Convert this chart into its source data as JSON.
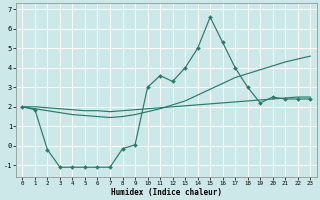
{
  "xlabel": "Humidex (Indice chaleur)",
  "bg_color": "#cce8e8",
  "grid_color": "#ffffff",
  "line_color": "#2a7a6a",
  "xlim": [
    -0.5,
    23.5
  ],
  "ylim": [
    -1.6,
    7.3
  ],
  "yticks": [
    -1,
    0,
    1,
    2,
    3,
    4,
    5,
    6,
    7
  ],
  "xticks": [
    0,
    1,
    2,
    3,
    4,
    5,
    6,
    7,
    8,
    9,
    10,
    11,
    12,
    13,
    14,
    15,
    16,
    17,
    18,
    19,
    20,
    21,
    22,
    23
  ],
  "series1_x": [
    0,
    1,
    2,
    3,
    4,
    5,
    6,
    7,
    8,
    9,
    10,
    11,
    12,
    13,
    14,
    15,
    16,
    17,
    18,
    19,
    20,
    21,
    22,
    23
  ],
  "series1_y": [
    2.0,
    2.0,
    1.95,
    1.9,
    1.85,
    1.8,
    1.8,
    1.75,
    1.8,
    1.85,
    1.9,
    1.95,
    2.0,
    2.05,
    2.1,
    2.15,
    2.2,
    2.25,
    2.3,
    2.35,
    2.4,
    2.45,
    2.5,
    2.5
  ],
  "series2_x": [
    0,
    1,
    2,
    3,
    4,
    5,
    6,
    7,
    8,
    9,
    10,
    11,
    12,
    13,
    14,
    15,
    16,
    17,
    18,
    19,
    20,
    21,
    22,
    23
  ],
  "series2_y": [
    2.0,
    1.9,
    1.8,
    1.7,
    1.6,
    1.55,
    1.5,
    1.45,
    1.5,
    1.6,
    1.75,
    1.9,
    2.1,
    2.3,
    2.6,
    2.9,
    3.2,
    3.5,
    3.7,
    3.9,
    4.1,
    4.3,
    4.45,
    4.6
  ],
  "series3_x": [
    0,
    1,
    2,
    3,
    4,
    5,
    6,
    7,
    8,
    9,
    10,
    11,
    12,
    13,
    14,
    15,
    16,
    17,
    18,
    19,
    20,
    21,
    22,
    23
  ],
  "series3_y": [
    2.0,
    1.85,
    -0.2,
    -1.1,
    -1.1,
    -1.1,
    -1.1,
    -1.1,
    -0.15,
    0.05,
    3.0,
    3.6,
    3.3,
    4.0,
    5.0,
    6.6,
    5.3,
    4.0,
    3.0,
    2.2,
    2.5,
    2.4,
    2.4,
    2.4
  ]
}
